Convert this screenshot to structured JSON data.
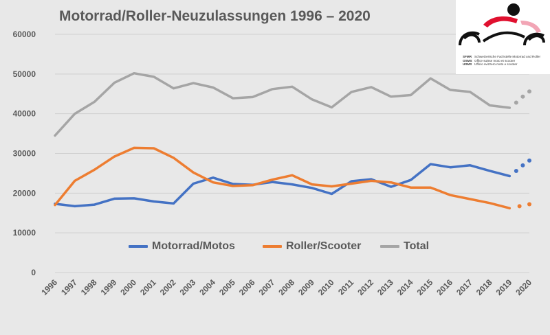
{
  "chart_data": {
    "type": "line",
    "title": "Motorrad/Roller-Neuzulassungen 1996 – 2020",
    "categories": [
      "1996",
      "1997",
      "1998",
      "1999",
      "2000",
      "2001",
      "2002",
      "2003",
      "2004",
      "2005",
      "2006",
      "2007",
      "2008",
      "2009",
      "2010",
      "2011",
      "2012",
      "2013",
      "2014",
      "2015",
      "2016",
      "2017",
      "2018",
      "2019",
      "2020"
    ],
    "ylim": [
      0,
      60000
    ],
    "yticks": [
      "0",
      "10000",
      "20000",
      "30000",
      "40000",
      "50000",
      "60000"
    ],
    "grid": true,
    "legend_position": "bottom",
    "series": [
      {
        "name": "Motorrad/Motos",
        "color": "#4472c4",
        "values": [
          17300,
          16700,
          17100,
          18600,
          18700,
          17900,
          17400,
          22400,
          23900,
          22300,
          22100,
          22800,
          22200,
          21300,
          19800,
          23000,
          23500,
          21600,
          23300,
          27300,
          26500,
          27000,
          25600,
          24300,
          null
        ],
        "projected": [
          25600,
          27000,
          28200
        ]
      },
      {
        "name": "Roller/Scooter",
        "color": "#ed7d31",
        "values": [
          17000,
          23100,
          25900,
          29200,
          31400,
          31300,
          28900,
          25200,
          22700,
          21800,
          22000,
          23400,
          24500,
          22200,
          21700,
          22400,
          23100,
          22700,
          21400,
          21400,
          19500,
          18500,
          17500,
          16200,
          null
        ],
        "projected": [
          16700,
          17200
        ]
      },
      {
        "name": "Total",
        "color": "#a5a5a5",
        "values": [
          34500,
          40000,
          43000,
          47800,
          50200,
          49300,
          46400,
          47700,
          46600,
          43900,
          44200,
          46200,
          46800,
          43600,
          41600,
          45500,
          46700,
          44300,
          44700,
          48900,
          46000,
          45500,
          42100,
          41500,
          null
        ],
        "projected": [
          42800,
          44300,
          45600
        ]
      }
    ]
  },
  "logo": {
    "lines": [
      {
        "abbr": "SFMR",
        "text": "Schweizerische Fachstelle Motorrad und Roller"
      },
      {
        "abbr": "OSMS",
        "text": "Office suisse moto et scooter"
      },
      {
        "abbr": "USMS",
        "text": "Ufficio svizzero moto e scooter"
      }
    ]
  }
}
